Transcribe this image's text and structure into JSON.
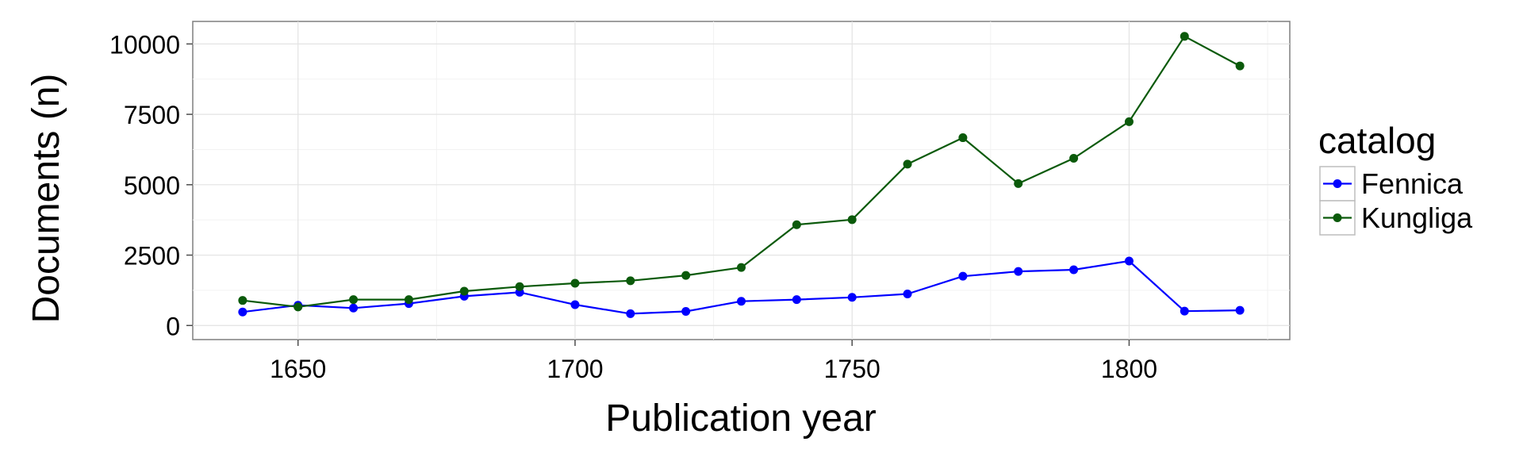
{
  "chart_data": {
    "type": "line",
    "title": "",
    "xlabel": "Publication year",
    "ylabel": "Documents (n)",
    "xlim": [
      1631,
      1829
    ],
    "ylim": [
      -500,
      10800
    ],
    "x_ticks": [
      1650,
      1700,
      1750,
      1800
    ],
    "y_ticks": [
      0,
      2500,
      5000,
      7500,
      10000
    ],
    "x_tick_labels": [
      "1650",
      "1700",
      "1750",
      "1800"
    ],
    "y_tick_labels": [
      "0",
      "2500",
      "5000",
      "7500",
      "10000"
    ],
    "grid": true,
    "legend": {
      "title": "catalog",
      "position": "right"
    },
    "x": [
      1640,
      1650,
      1660,
      1670,
      1680,
      1690,
      1700,
      1710,
      1720,
      1730,
      1740,
      1750,
      1760,
      1770,
      1780,
      1790,
      1800,
      1810,
      1820
    ],
    "series": [
      {
        "name": "Fennica",
        "color": "#0000ff",
        "values": [
          480,
          720,
          620,
          780,
          1040,
          1180,
          740,
          420,
          500,
          860,
          920,
          1000,
          1120,
          1750,
          1920,
          1980,
          2290,
          510,
          540
        ]
      },
      {
        "name": "Kungliga",
        "color": "#0b5a0b",
        "values": [
          890,
          660,
          920,
          920,
          1220,
          1380,
          1500,
          1590,
          1780,
          2060,
          3580,
          3760,
          5730,
          6670,
          5040,
          5940,
          7240,
          10270,
          9220
        ]
      }
    ]
  }
}
